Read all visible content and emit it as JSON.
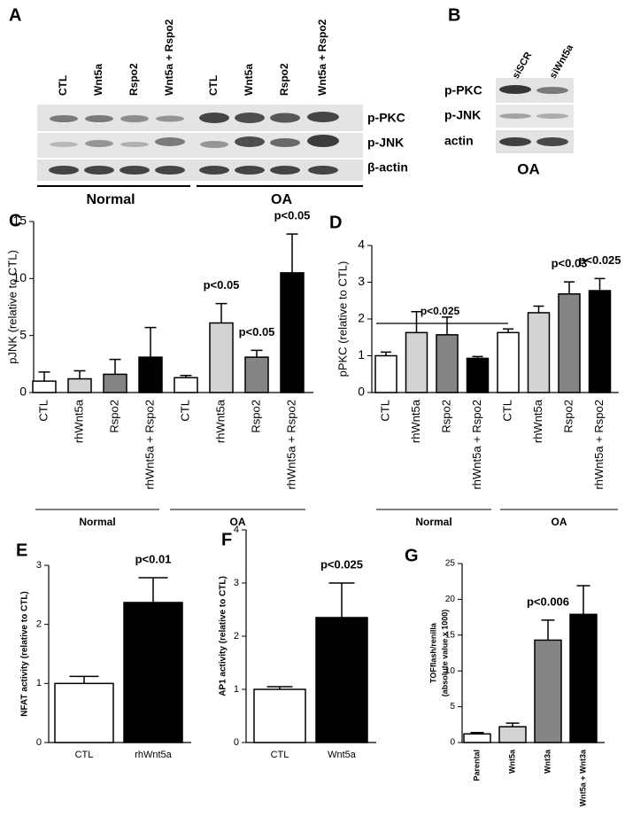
{
  "blot_a": {
    "label": "A",
    "lanes": [
      "CTL",
      "Wnt5a",
      "Rspo2",
      "Wnt5a + Rspo2",
      "CTL",
      "Wnt5a",
      "Rspo2",
      "Wnt5a + Rspo2"
    ],
    "rows": [
      "p-PKC",
      "p-JNK",
      "β-actin"
    ],
    "groups": [
      "Normal",
      "OA"
    ]
  },
  "blot_b": {
    "label": "B",
    "lanes": [
      "siSCR",
      "siWnt5a"
    ],
    "rows": [
      "p-PKC",
      "p-JNK",
      "actin"
    ],
    "condition": "OA"
  },
  "chart_data": [
    {
      "type": "bar",
      "panel": "C",
      "y_label": "pJNK (relative to CTL)",
      "categories": [
        "CTL",
        "rhWnt5a",
        "Rspo2",
        "rhWnt5a + Rspo2",
        "CTL",
        "rhWnt5a",
        "Rspo2",
        "rhWnt5a + Rspo2"
      ],
      "values": [
        1.0,
        1.2,
        1.6,
        3.1,
        1.3,
        6.1,
        3.1,
        10.5
      ],
      "errors": [
        0.8,
        0.7,
        1.3,
        2.6,
        0.2,
        1.7,
        0.6,
        3.4
      ],
      "colors": [
        "#ffffff",
        "#d3d3d3",
        "#858585",
        "#000000",
        "#ffffff",
        "#d3d3d3",
        "#858585",
        "#000000"
      ],
      "ylim": [
        0,
        15
      ],
      "yticks": [
        0,
        5,
        10,
        15
      ],
      "groups": [
        "Normal",
        "OA"
      ],
      "annotations": [
        "p<0.05",
        "p<0.05",
        "p<0.05"
      ]
    },
    {
      "type": "bar",
      "panel": "D",
      "y_label": "pPKC (relative to CTL)",
      "categories": [
        "CTL",
        "rhWnt5a",
        "Rspo2",
        "rhWnt5a + Rspo2",
        "CTL",
        "rhWnt5a",
        "Rspo2",
        "rhWnt5a + Rspo2"
      ],
      "values": [
        1.0,
        1.63,
        1.57,
        0.93,
        1.63,
        2.17,
        2.68,
        2.77
      ],
      "errors": [
        0.1,
        0.57,
        0.48,
        0.05,
        0.1,
        0.18,
        0.33,
        0.33
      ],
      "colors": [
        "#ffffff",
        "#d3d3d3",
        "#858585",
        "#000000",
        "#ffffff",
        "#d3d3d3",
        "#858585",
        "#000000"
      ],
      "ylim": [
        0,
        4
      ],
      "yticks": [
        0,
        1,
        2,
        3,
        4
      ],
      "groups": [
        "Normal",
        "OA"
      ],
      "annotations": [
        "p<0.025",
        "p<0.03",
        "p<0.025"
      ]
    },
    {
      "type": "bar",
      "panel": "E",
      "y_label": "NFAT activity (relative to CTL)",
      "categories": [
        "CTL",
        "rhWnt5a"
      ],
      "values": [
        1.0,
        2.37
      ],
      "errors": [
        0.12,
        0.42
      ],
      "colors": [
        "#ffffff",
        "#000000"
      ],
      "ylim": [
        0,
        3
      ],
      "yticks": [
        0,
        1,
        2,
        3
      ],
      "annotations": [
        "p<0.01"
      ]
    },
    {
      "type": "bar",
      "panel": "F",
      "y_label": "AP1 activity (relative to CTL)",
      "categories": [
        "CTL",
        "Wnt5a"
      ],
      "values": [
        1.0,
        2.35
      ],
      "errors": [
        0.05,
        0.65
      ],
      "colors": [
        "#ffffff",
        "#000000"
      ],
      "ylim": [
        0,
        4
      ],
      "yticks": [
        0,
        1,
        2,
        3,
        4
      ],
      "annotations": [
        "p<0.025"
      ]
    },
    {
      "type": "bar",
      "panel": "G",
      "y_label": [
        "TOFflash/renilla",
        "(absolute value x 1000)"
      ],
      "categories": [
        "Parental",
        "Wnt5a",
        "Wnt3a",
        "Wnt5a + Wnt3a"
      ],
      "values": [
        1.2,
        2.2,
        14.3,
        17.9
      ],
      "errors": [
        0.2,
        0.5,
        2.8,
        4.0
      ],
      "colors": [
        "#ffffff",
        "#d3d3d3",
        "#858585",
        "#000000"
      ],
      "ylim": [
        0,
        25
      ],
      "yticks": [
        0,
        5,
        10,
        15,
        20,
        25
      ],
      "annotations": [
        "p<0.006"
      ]
    }
  ]
}
